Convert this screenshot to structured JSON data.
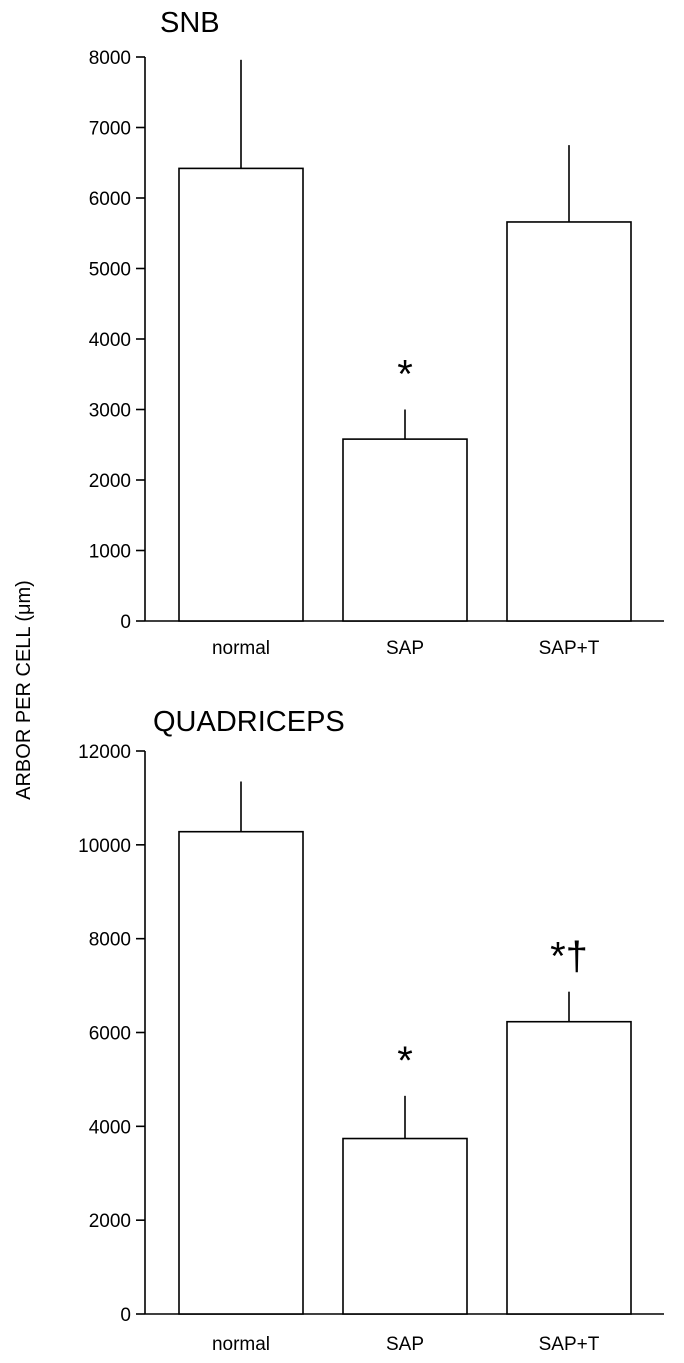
{
  "y_axis_label": "ARBOR PER CELL  (μm)",
  "chart_data": [
    {
      "type": "bar",
      "title": "SNB",
      "categories": [
        "normal",
        "SAP",
        "SAP+T"
      ],
      "values": [
        6420,
        2580,
        5660
      ],
      "error_upper": [
        7960,
        3000,
        6750
      ],
      "annotations": [
        "",
        "*",
        ""
      ],
      "ylim": [
        0,
        8000
      ],
      "yticks": [
        0,
        1000,
        2000,
        3000,
        4000,
        5000,
        6000,
        7000,
        8000
      ],
      "ylabel": "ARBOR PER CELL  (μm)"
    },
    {
      "type": "bar",
      "title": "QUADRICEPS",
      "categories": [
        "normal",
        "SAP",
        "SAP+T"
      ],
      "values": [
        10280,
        3740,
        6230
      ],
      "error_upper": [
        11350,
        4650,
        6870
      ],
      "annotations": [
        "",
        "*",
        "*†"
      ],
      "ylim": [
        0,
        12000
      ],
      "yticks": [
        0,
        2000,
        4000,
        6000,
        8000,
        10000,
        12000
      ],
      "ylabel": "ARBOR PER CELL  (μm)"
    }
  ]
}
